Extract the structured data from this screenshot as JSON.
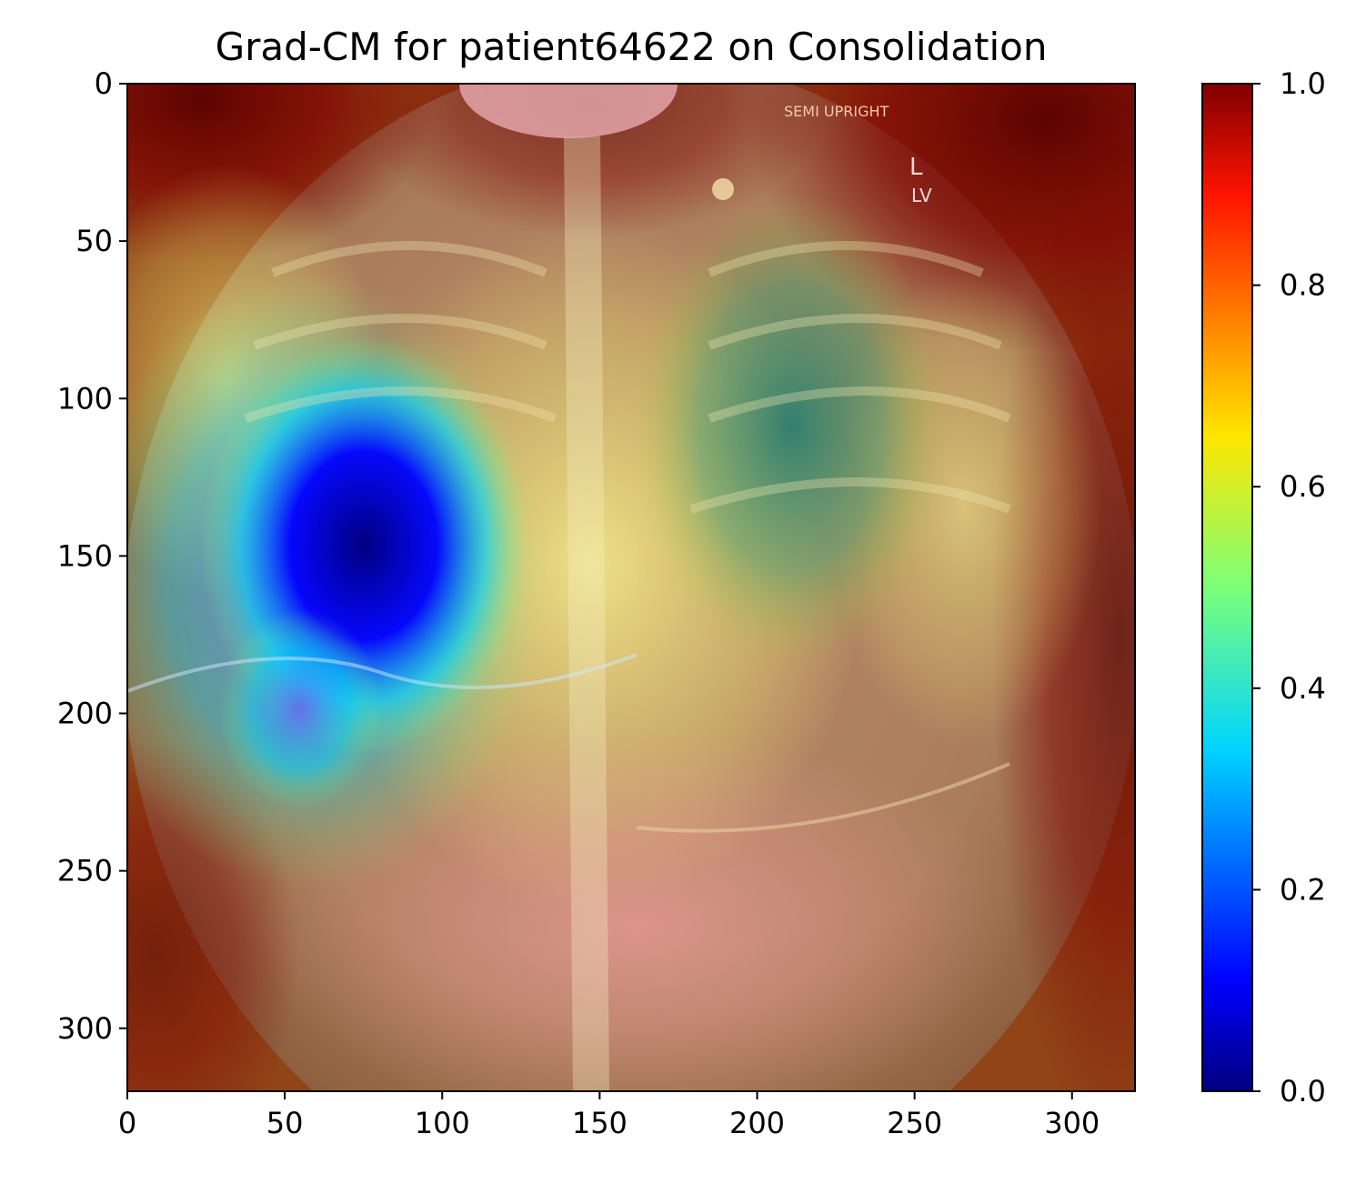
{
  "chart_data": {
    "type": "heatmap",
    "title": "Grad-CM for patient64622 on Consolidation",
    "xlabel": "",
    "ylabel": "",
    "xlim": [
      0,
      320
    ],
    "ylim": [
      320,
      0
    ],
    "x_ticks": [
      "0",
      "50",
      "100",
      "150",
      "200",
      "250",
      "300"
    ],
    "y_ticks": [
      "0",
      "50",
      "100",
      "150",
      "200",
      "250",
      "300"
    ],
    "colorbar": {
      "colormap": "jet",
      "range": [
        0.0,
        1.0
      ],
      "ticks": [
        "0.0",
        "0.2",
        "0.4",
        "0.6",
        "0.8",
        "1.0"
      ]
    },
    "overlay_text": "SEMI UPRIGHT",
    "marker_labels": [
      "L",
      "LV"
    ],
    "heat_regions": [
      {
        "x": 75,
        "y": 150,
        "value": 0.02
      },
      {
        "x": 55,
        "y": 200,
        "value": 0.2
      },
      {
        "x": 210,
        "y": 120,
        "value": 0.42
      },
      {
        "x": 150,
        "y": 140,
        "value": 0.62
      },
      {
        "x": 40,
        "y": 10,
        "value": 1.0
      },
      {
        "x": 300,
        "y": 10,
        "value": 1.0
      },
      {
        "x": 310,
        "y": 300,
        "value": 0.95
      },
      {
        "x": 10,
        "y": 300,
        "value": 0.9
      },
      {
        "x": 150,
        "y": 310,
        "value": 0.85
      }
    ],
    "colors": {
      "jet_0": "#00007f",
      "jet_0_1": "#0000ff",
      "jet_0_35": "#00d4ff",
      "jet_0_5": "#7cff79",
      "jet_0_65": "#ffe600",
      "jet_0_9": "#ff1300",
      "jet_1": "#7f0000"
    }
  }
}
